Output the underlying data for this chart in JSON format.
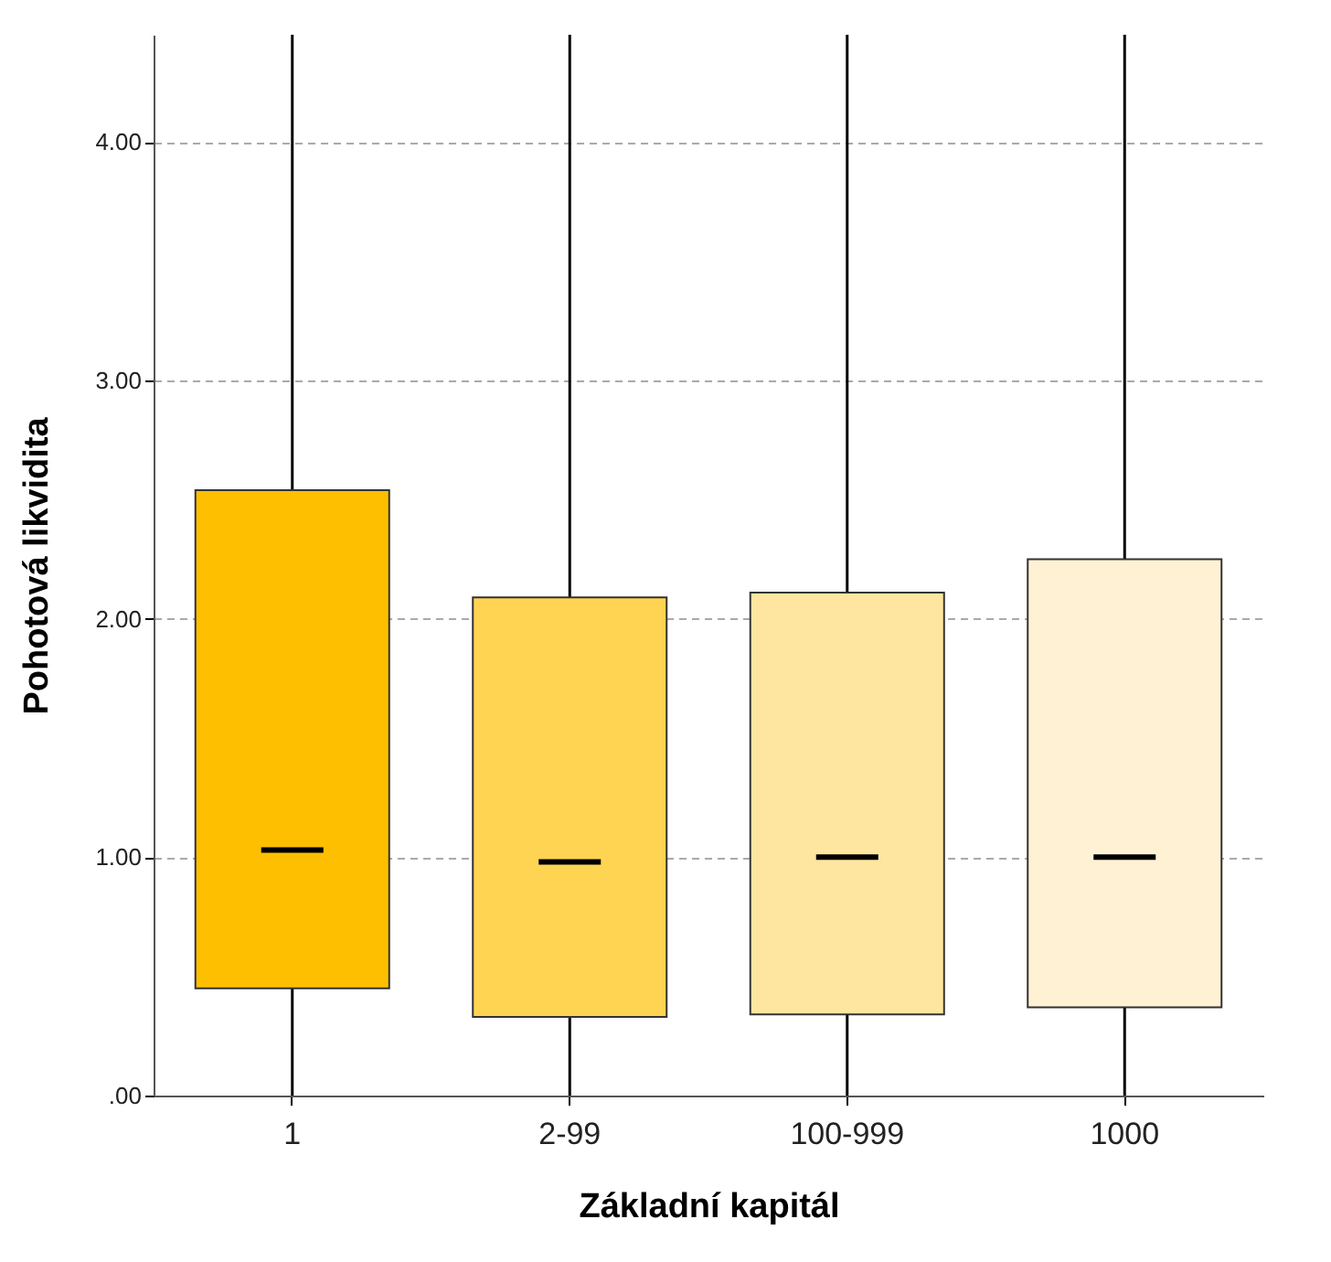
{
  "chart_data": {
    "type": "box",
    "xlabel": "Základní kapitál",
    "ylabel": "Pohotová likvidita",
    "categories": [
      "1",
      "2-99",
      "100-999",
      "1000"
    ],
    "boxes": [
      {
        "low": 0,
        "q1": 0.45,
        "median": 1.03,
        "q3": 2.54,
        "high": 4.45
      },
      {
        "low": 0,
        "q1": 0.33,
        "median": 0.98,
        "q3": 2.09,
        "high": 4.45
      },
      {
        "low": 0,
        "q1": 0.34,
        "median": 1.0,
        "q3": 2.11,
        "high": 4.45
      },
      {
        "low": 0,
        "q1": 0.37,
        "median": 1.0,
        "q3": 2.25,
        "high": 4.45
      }
    ],
    "colors": [
      "#fdbf00",
      "#ffd452",
      "#ffe6a0",
      "#fff2d4"
    ],
    "ylim": [
      0,
      4.45
    ],
    "yticks": [
      {
        "value": 0,
        "label": ".00"
      },
      {
        "value": 1,
        "label": "1.00"
      },
      {
        "value": 2,
        "label": "2.00"
      },
      {
        "value": 3,
        "label": "3.00"
      },
      {
        "value": 4,
        "label": "4.00"
      }
    ],
    "grid": "y"
  }
}
